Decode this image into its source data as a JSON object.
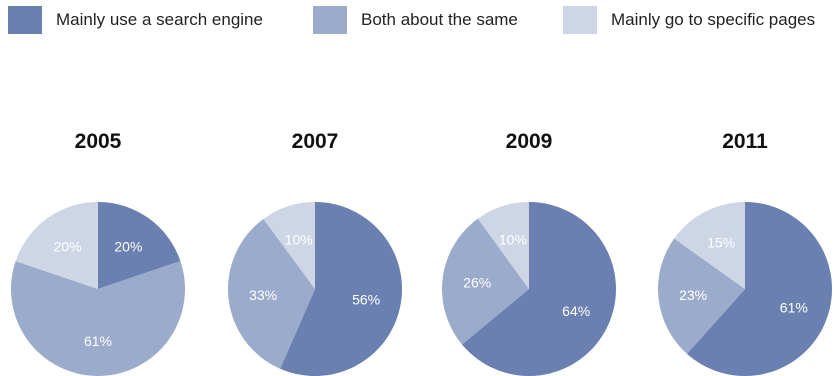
{
  "colors": {
    "search_engine": "#6a80b0",
    "both_same": "#9aabcb",
    "specific_pages": "#ced6e6"
  },
  "legend": [
    {
      "label": "Mainly use a search engine",
      "color_key": "search_engine"
    },
    {
      "label": "Both about the same",
      "color_key": "both_same"
    },
    {
      "label": "Mainly go to specific pages",
      "color_key": "specific_pages"
    }
  ],
  "chart_data": [
    {
      "type": "pie",
      "title": "2005",
      "slices": [
        {
          "name": "Mainly use a search engine",
          "value": 20,
          "label": "20%"
        },
        {
          "name": "Both about the same",
          "value": 61,
          "label": "61%"
        },
        {
          "name": "Mainly go to specific pages",
          "value": 20,
          "label": "20%"
        }
      ]
    },
    {
      "type": "pie",
      "title": "2007",
      "slices": [
        {
          "name": "Mainly use a search engine",
          "value": 56,
          "label": "56%"
        },
        {
          "name": "Both about the same",
          "value": 33,
          "label": "33%"
        },
        {
          "name": "Mainly go to specific pages",
          "value": 10,
          "label": "10%"
        }
      ]
    },
    {
      "type": "pie",
      "title": "2009",
      "slices": [
        {
          "name": "Mainly use a search engine",
          "value": 64,
          "label": "64%"
        },
        {
          "name": "Both about the same",
          "value": 26,
          "label": "26%"
        },
        {
          "name": "Mainly go to specific pages",
          "value": 10,
          "label": "10%"
        }
      ]
    },
    {
      "type": "pie",
      "title": "2011",
      "slices": [
        {
          "name": "Mainly use a search engine",
          "value": 61,
          "label": "61%"
        },
        {
          "name": "Both about the same",
          "value": 23,
          "label": "23%"
        },
        {
          "name": "Mainly go to specific pages",
          "value": 15,
          "label": "15%"
        }
      ]
    }
  ]
}
